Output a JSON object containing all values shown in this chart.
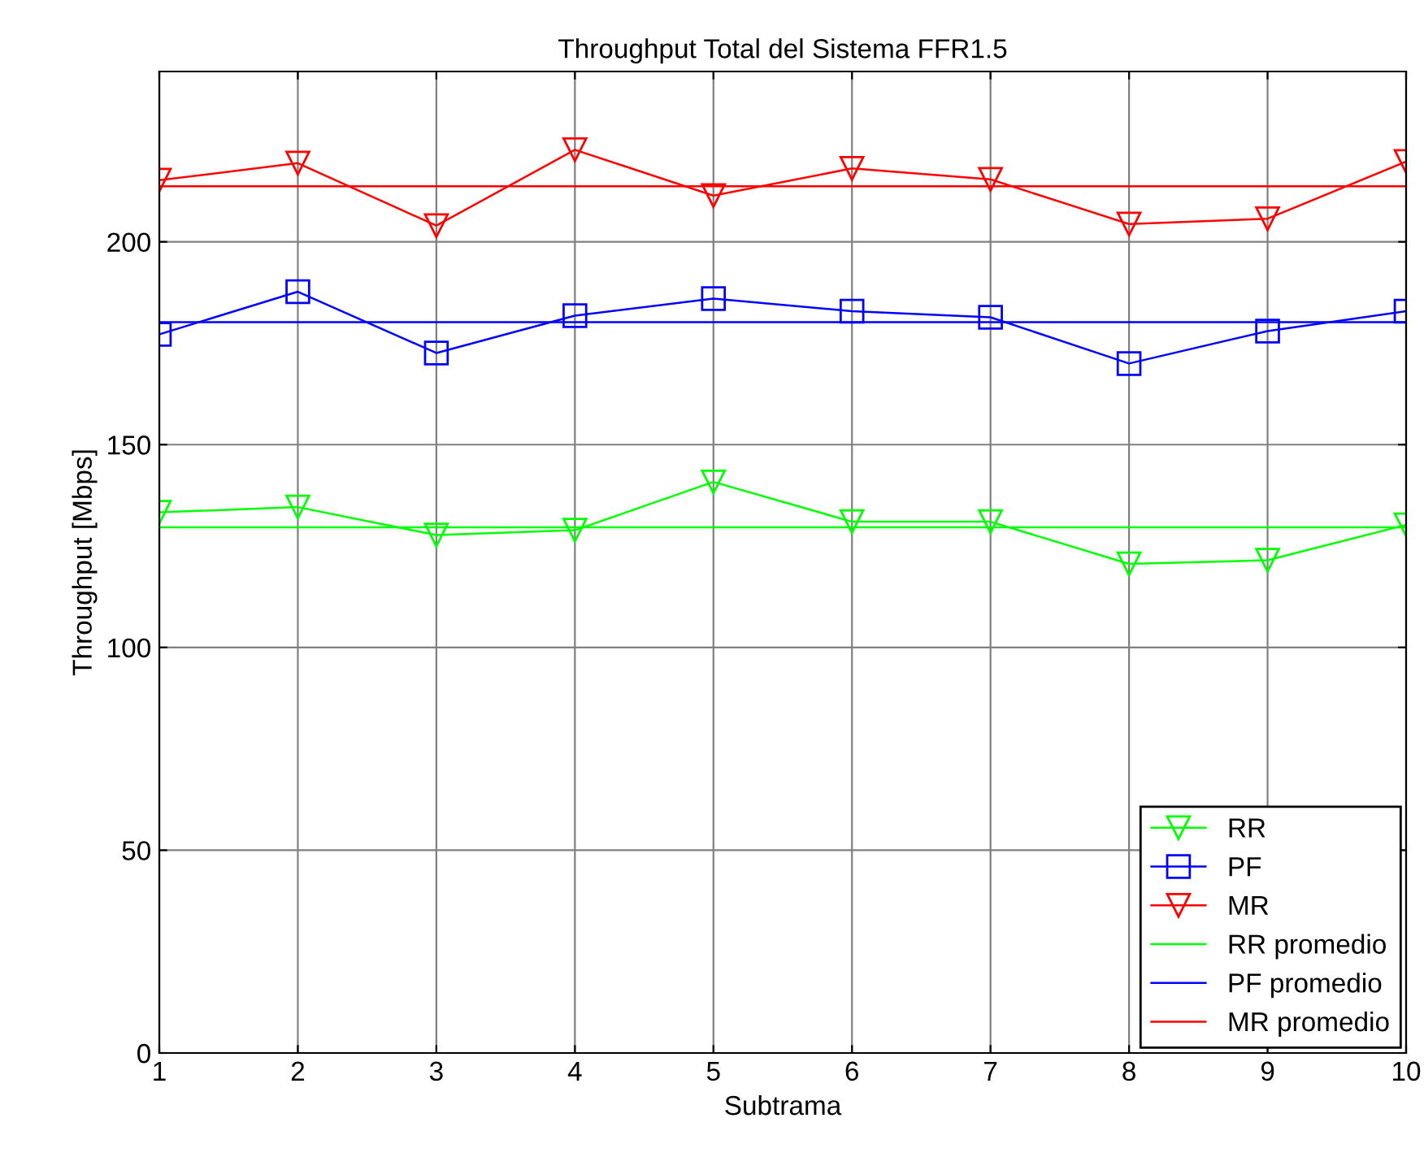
{
  "chart_data": {
    "type": "line",
    "title": "Throughput Total del Sistema FFR1.5",
    "xlabel": "Subtrama",
    "ylabel": "Throughput [Mbps]",
    "x": [
      1,
      2,
      3,
      4,
      5,
      6,
      7,
      8,
      9,
      10
    ],
    "series": [
      {
        "name": "RR",
        "color": "#00ff00",
        "marker": "triangle",
        "values": [
          133.3,
          134.6,
          127.7,
          128.9,
          140.8,
          131,
          131,
          120.6,
          121.5,
          130.2
        ]
      },
      {
        "name": "PF",
        "color": "#0000ff",
        "marker": "square",
        "values": [
          177.2,
          187.7,
          172.6,
          181.8,
          186,
          182.9,
          181.4,
          170,
          178,
          182.9
        ]
      },
      {
        "name": "MR",
        "color": "#ff0000",
        "marker": "triangle",
        "values": [
          215.2,
          219.4,
          204,
          222.7,
          211.4,
          218.1,
          215.4,
          204.4,
          205.7,
          219.8
        ]
      },
      {
        "name": "RR promedio",
        "color": "#00ff00",
        "marker": "none",
        "values": [
          129.6,
          129.6,
          129.6,
          129.6,
          129.6,
          129.6,
          129.6,
          129.6,
          129.6,
          129.6
        ]
      },
      {
        "name": "PF promedio",
        "color": "#0000ff",
        "marker": "none",
        "values": [
          180.2,
          180.2,
          180.2,
          180.2,
          180.2,
          180.2,
          180.2,
          180.2,
          180.2,
          180.2
        ]
      },
      {
        "name": "MR promedio",
        "color": "#ff0000",
        "marker": "none",
        "values": [
          213.7,
          213.7,
          213.7,
          213.7,
          213.7,
          213.7,
          213.7,
          213.7,
          213.7,
          213.7
        ]
      }
    ],
    "xlim": [
      1,
      10
    ],
    "ylim": [
      0,
      242
    ],
    "xticks": [
      1,
      2,
      3,
      4,
      5,
      6,
      7,
      8,
      9,
      10
    ],
    "yticks": [
      0,
      50,
      100,
      150,
      200
    ],
    "grid": true,
    "legend": "bottom right",
    "line_style": "solid"
  }
}
